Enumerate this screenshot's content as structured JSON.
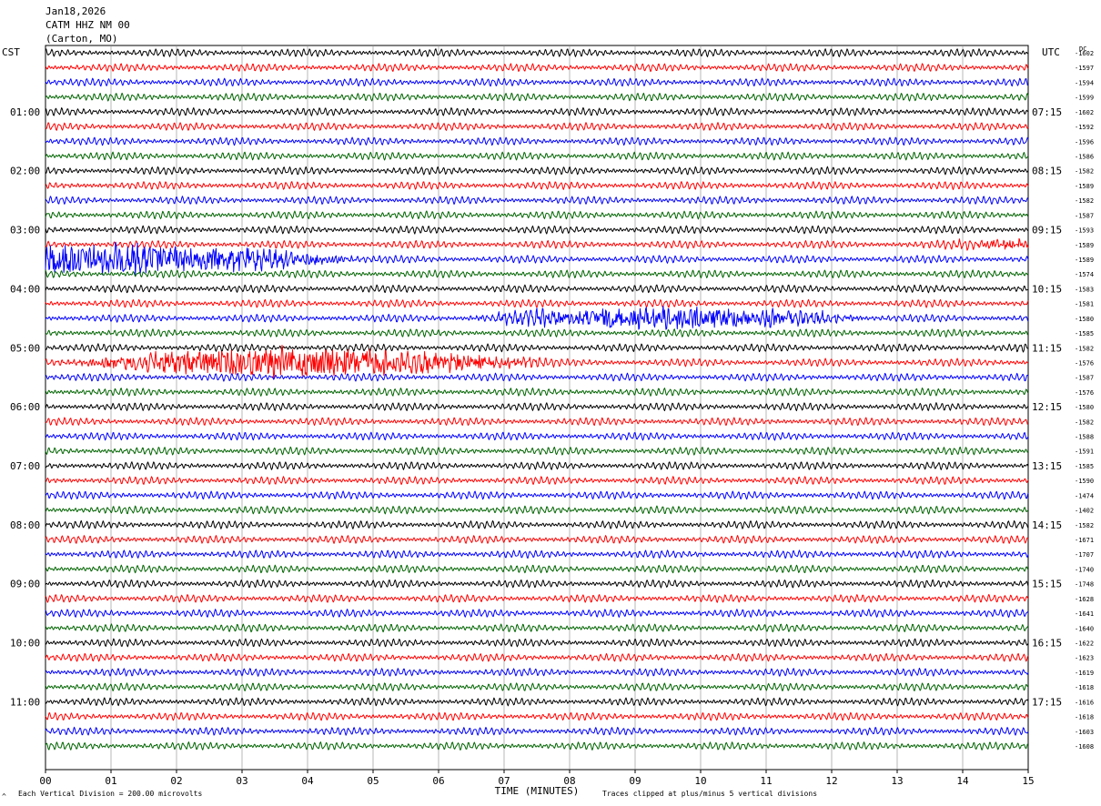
{
  "header": {
    "date": "Jan18,2026",
    "station": "CATM HHZ NM 00",
    "location": "(Carton, MO)"
  },
  "labels": {
    "left_tz": "CST",
    "right_tz": "UTC",
    "dc_header": "DC",
    "xlabel": "TIME (MINUTES)",
    "scale_note": "Each Vertical Division =  200.00 microvolts",
    "clip_note": "Traces clipped at plus/minus 5 vertical divisions"
  },
  "colors": {
    "trace_cycle": [
      "#000000",
      "#ff0000",
      "#0000ff",
      "#006400"
    ],
    "grid": "#888888",
    "background": "#ffffff"
  },
  "chart_data": {
    "type": "line",
    "subtype": "helicorder",
    "x_ticks": [
      "00",
      "01",
      "02",
      "03",
      "04",
      "05",
      "06",
      "07",
      "08",
      "09",
      "10",
      "11",
      "12",
      "13",
      "14",
      "15"
    ],
    "xlim": [
      0,
      15
    ],
    "minutes_per_line": 15,
    "trace_count": 48,
    "left_hour_labels": [
      "01:00",
      "02:00",
      "03:00",
      "04:00",
      "05:00",
      "06:00",
      "07:00",
      "08:00",
      "09:00",
      "10:00",
      "11:00"
    ],
    "right_hour_labels": [
      "07:15",
      "08:15",
      "09:15",
      "10:15",
      "11:15",
      "12:15",
      "13:15",
      "14:15",
      "15:15",
      "16:15",
      "17:15"
    ],
    "dc_offsets": [
      -1602,
      -1597,
      -1594,
      -1599,
      -1602,
      -1592,
      -1596,
      -1586,
      -1582,
      -1589,
      -1582,
      -1587,
      -1593,
      -1589,
      -1589,
      -1574,
      -1583,
      -1581,
      -1580,
      -1585,
      -1582,
      -1576,
      -1587,
      -1576,
      -1580,
      -1582,
      -1588,
      -1591,
      -1585,
      -1590,
      -1474,
      -1402,
      -1582,
      -1671,
      -1707,
      -1740,
      -1748,
      -1628,
      -1641,
      -1640,
      -1622,
      -1623,
      -1619,
      -1618,
      -1616,
      -1618,
      -1603,
      -1608
    ],
    "events": [
      {
        "trace": 13,
        "from_min": 12.0,
        "to_min": 15.0,
        "amp": 1.7,
        "ramp": "up"
      },
      {
        "trace": 14,
        "from_min": 0.0,
        "to_min": 5.5,
        "amp": 3.2,
        "ramp": "down"
      },
      {
        "trace": 18,
        "from_min": 0.0,
        "to_min": 6.0,
        "amp": 0.9,
        "ramp": "flat"
      },
      {
        "trace": 18,
        "from_min": 6.0,
        "to_min": 13.0,
        "amp": 2.5,
        "ramp": "peak"
      },
      {
        "trace": 20,
        "from_min": 13.0,
        "to_min": 15.0,
        "amp": 1.2,
        "ramp": "up"
      },
      {
        "trace": 21,
        "from_min": 0.0,
        "to_min": 8.0,
        "amp": 3.0,
        "ramp": "peak"
      }
    ]
  }
}
